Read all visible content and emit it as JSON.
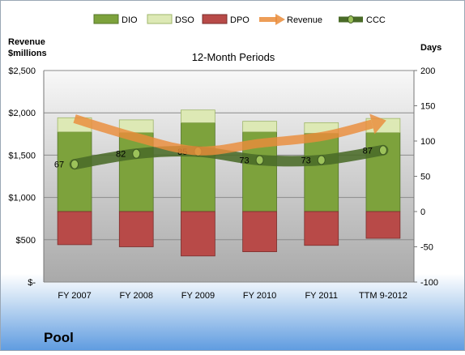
{
  "chart_data": {
    "type": "bar",
    "title": "12-Month Periods",
    "company": "Pool",
    "left_axis_title": [
      "Revenue",
      "$millions"
    ],
    "right_axis_title": "Days",
    "left_ticks": [
      "$2,500",
      "$2,000",
      "$1,500",
      "$1,000",
      "$500",
      "$-"
    ],
    "right_ticks": [
      "200",
      "150",
      "100",
      "50",
      "0",
      "-50",
      "-100"
    ],
    "left_ylim": [
      0,
      2500
    ],
    "right_ylim": [
      -100,
      200
    ],
    "legend_position": "top",
    "categories": [
      "FY 2007",
      "FY 2008",
      "FY 2009",
      "FY 2010",
      "FY 2011",
      "TTM 9-2012"
    ],
    "series": [
      {
        "name": "DIO",
        "axis": "right",
        "type": "stacked-bar",
        "color": "#7da23c",
        "values": [
          113,
          112,
          126,
          113,
          111,
          112
        ]
      },
      {
        "name": "DSO",
        "axis": "right",
        "type": "stacked-bar",
        "color": "#dde9b5",
        "values": [
          20,
          18,
          18,
          15,
          15,
          20
        ]
      },
      {
        "name": "DPO",
        "axis": "right",
        "type": "stacked-bar",
        "color": "#b84a48",
        "values": [
          47,
          50,
          63,
          57,
          48,
          38
        ]
      },
      {
        "name": "Revenue",
        "axis": "left",
        "type": "arrow-line",
        "color": "#ea8c3a",
        "values": [
          1930,
          1710,
          1550,
          1640,
          1720,
          1900
        ]
      },
      {
        "name": "CCC",
        "axis": "right",
        "type": "line",
        "color": "#4a6b28",
        "values": [
          67,
          82,
          85,
          73,
          73,
          87
        ],
        "labels": [
          "67",
          "82",
          "85",
          "73",
          "73",
          "87"
        ]
      }
    ]
  }
}
